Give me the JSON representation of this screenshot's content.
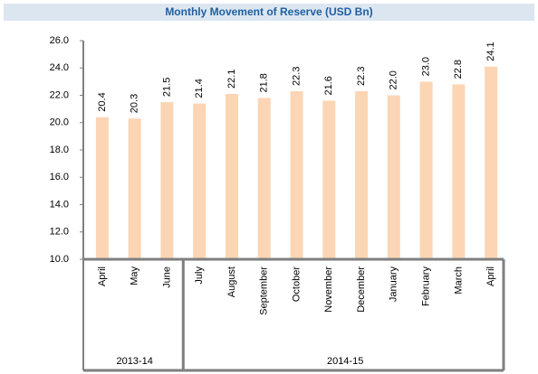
{
  "chart_data": {
    "type": "bar",
    "title": "Monthly Movement of Reserve (USD Bn)",
    "categories": [
      "April",
      "May",
      "June",
      "July",
      "August",
      "September",
      "October",
      "November",
      "December",
      "January",
      "February",
      "March",
      "April"
    ],
    "values": [
      20.4,
      20.3,
      21.5,
      21.4,
      22.1,
      21.8,
      22.3,
      21.6,
      22.3,
      22.0,
      23.0,
      22.8,
      24.1
    ],
    "value_labels": [
      "20.4",
      "20.3",
      "21.5",
      "21.4",
      "22.1",
      "21.8",
      "22.3",
      "21.6",
      "22.3",
      "22.0",
      "23.0",
      "22.8",
      "24.1"
    ],
    "color": "#fcd5b4",
    "groups": [
      {
        "label": "2013-14",
        "span": 3
      },
      {
        "label": "2014-15",
        "span": 10
      }
    ],
    "ylim": [
      10,
      26
    ],
    "yticks": [
      {
        "value": 10,
        "label": "10.0"
      },
      {
        "value": 12,
        "label": "12.0"
      },
      {
        "value": 14,
        "label": "14.0"
      },
      {
        "value": 16,
        "label": "16.0"
      },
      {
        "value": 18,
        "label": "18.0"
      },
      {
        "value": 20,
        "label": "20.0"
      },
      {
        "value": 22,
        "label": "22.0"
      },
      {
        "value": 24,
        "label": "24.0"
      },
      {
        "value": 26,
        "label": "26.0"
      }
    ],
    "grid": false
  }
}
